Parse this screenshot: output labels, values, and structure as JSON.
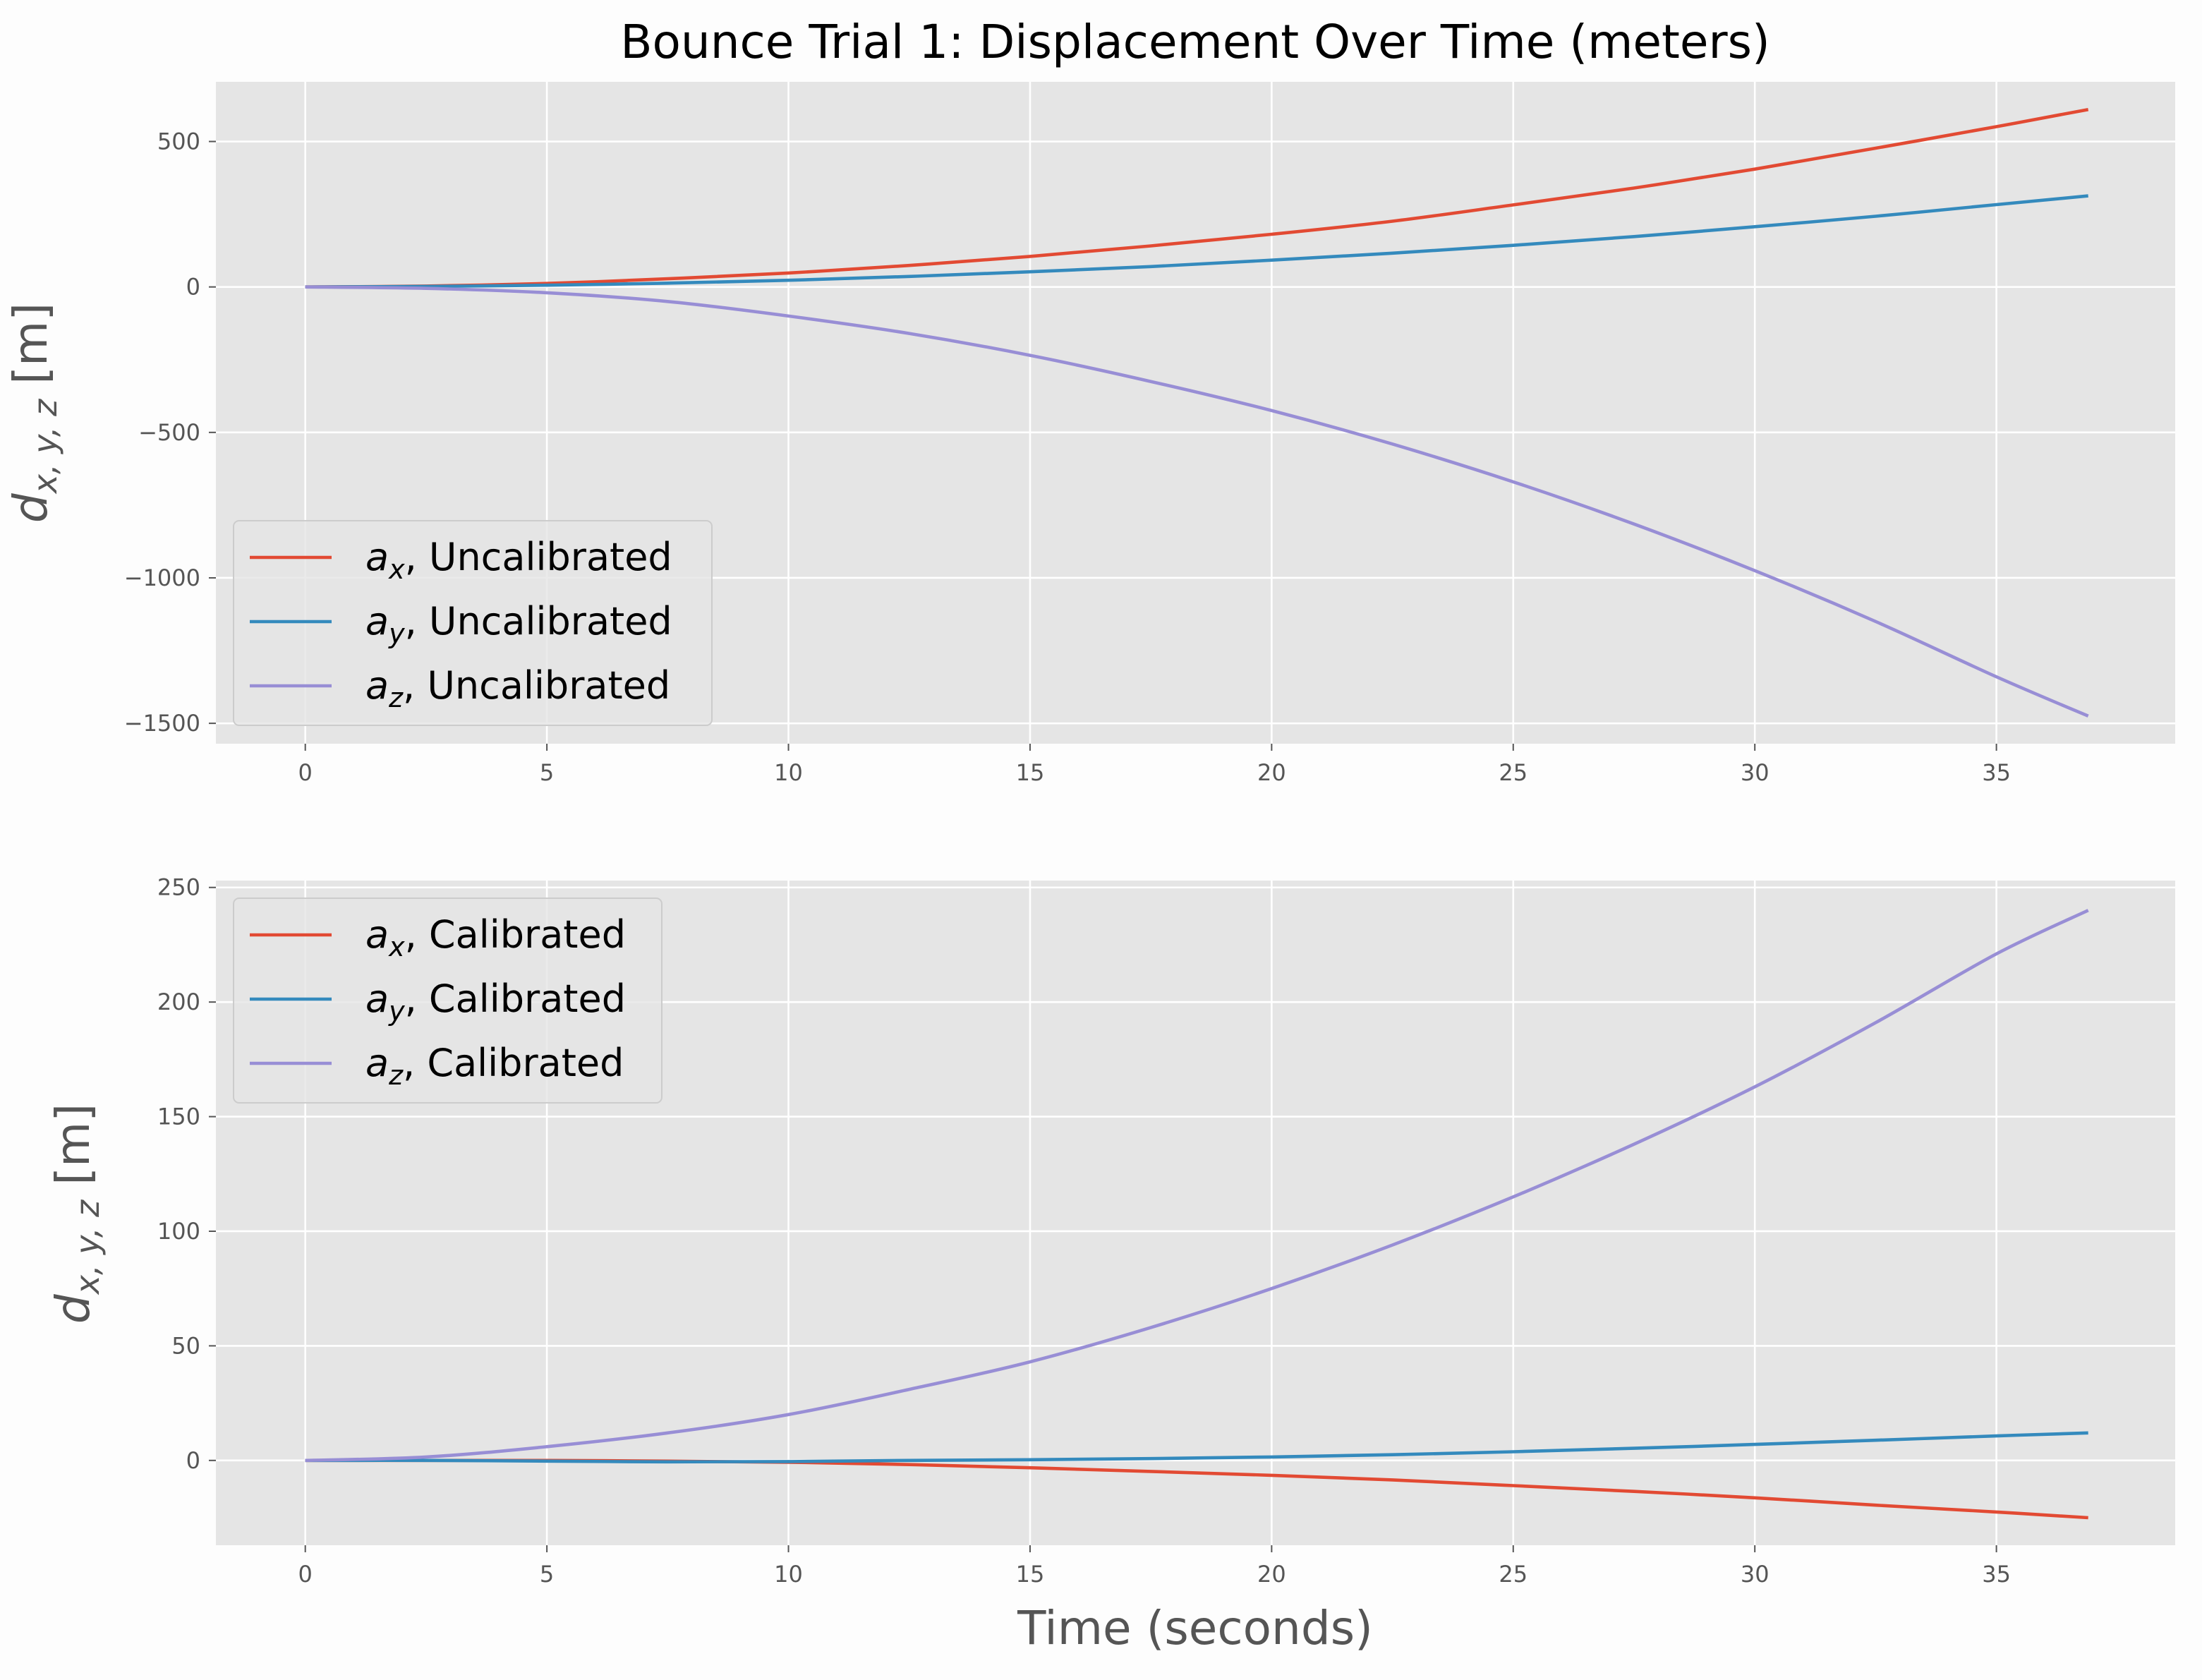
{
  "figure": {
    "title": "Bounce Trial 1: Displacement Over Time (meters)"
  },
  "colors": {
    "background": "#fdfdfd",
    "axes_face": "#e5e5e5",
    "grid": "#ffffff",
    "tick_text": "#555555",
    "series": [
      "#e24a33",
      "#348abd",
      "#988ed5"
    ]
  },
  "chart_data": [
    {
      "type": "line",
      "title": "",
      "xlabel": "",
      "ylabel": "d_{x,y,z} [m]",
      "ylabel_parts": {
        "base": "d",
        "sub": "x, y, z",
        "unit": "[m]"
      },
      "xlim": [
        -1.85,
        38.7
      ],
      "ylim": [
        -1570,
        705
      ],
      "xticks": [
        0,
        5,
        10,
        15,
        20,
        25,
        30,
        35
      ],
      "yticks": [
        500,
        0,
        -500,
        -1000,
        -1500
      ],
      "ytick_labels": [
        "500",
        "0",
        "−500",
        "−1000",
        "−1500"
      ],
      "grid": true,
      "legend_position": "lower-left",
      "x": [
        0,
        2.5,
        5,
        7.5,
        10,
        12.5,
        15,
        17.5,
        20,
        22.5,
        25,
        27.5,
        30,
        32.5,
        35,
        36.9
      ],
      "series": [
        {
          "name": "a_x, Uncalibrated",
          "legend": {
            "var": "a",
            "sub": "x",
            "rest": ", Uncalibrated"
          },
          "color": "#e24a33",
          "values": [
            0,
            3,
            12,
            28,
            48,
            74,
            105,
            141,
            181,
            226,
            282,
            340,
            405,
            477,
            551,
            610
          ]
        },
        {
          "name": "a_y, Uncalibrated",
          "legend": {
            "var": "a",
            "sub": "y",
            "rest": ", Uncalibrated"
          },
          "color": "#348abd",
          "values": [
            0,
            2,
            6,
            13,
            23,
            36,
            52,
            70,
            92,
            116,
            143,
            173,
            207,
            243,
            283,
            313
          ]
        },
        {
          "name": "a_z, Uncalibrated",
          "legend": {
            "var": "a",
            "sub": "z",
            "rest": ", Uncalibrated"
          },
          "color": "#988ed5",
          "values": [
            0,
            -5,
            -20,
            -50,
            -100,
            -160,
            -235,
            -325,
            -425,
            -540,
            -670,
            -815,
            -975,
            -1150,
            -1340,
            -1475
          ]
        }
      ]
    },
    {
      "type": "line",
      "title": "",
      "xlabel": "Time (seconds)",
      "ylabel": "d_{x,y,z} [m]",
      "ylabel_parts": {
        "base": "d",
        "sub": "x, y, z",
        "unit": "[m]"
      },
      "xlim": [
        -1.85,
        38.7
      ],
      "ylim": [
        -37,
        253
      ],
      "xticks": [
        0,
        5,
        10,
        15,
        20,
        25,
        30,
        35
      ],
      "yticks": [
        250,
        200,
        150,
        100,
        50,
        0
      ],
      "ytick_labels": [
        "250",
        "200",
        "150",
        "100",
        "50",
        "0"
      ],
      "grid": true,
      "legend_position": "upper-left",
      "x": [
        0,
        2.5,
        5,
        7.5,
        10,
        12.5,
        15,
        17.5,
        20,
        22.5,
        25,
        27.5,
        30,
        32.5,
        35,
        36.9
      ],
      "series": [
        {
          "name": "a_x, Calibrated",
          "legend": {
            "var": "a",
            "sub": "x",
            "rest": ", Calibrated"
          },
          "color": "#e24a33",
          "values": [
            0,
            0,
            0,
            -0.3,
            -0.8,
            -1.8,
            -3.2,
            -4.8,
            -6.5,
            -8.5,
            -11,
            -13.5,
            -16.3,
            -19.5,
            -22.5,
            -25
          ]
        },
        {
          "name": "a_y, Calibrated",
          "legend": {
            "var": "a",
            "sub": "y",
            "rest": ", Calibrated"
          },
          "color": "#348abd",
          "values": [
            0,
            0,
            -0.3,
            -0.6,
            -0.5,
            0,
            0.3,
            0.8,
            1.5,
            2.5,
            3.8,
            5.3,
            7,
            8.8,
            10.7,
            12
          ]
        },
        {
          "name": "a_z, Calibrated",
          "legend": {
            "var": "a",
            "sub": "z",
            "rest": ", Calibrated"
          },
          "color": "#988ed5",
          "values": [
            0,
            1.5,
            6,
            12,
            20,
            31,
            43,
            58,
            75,
            94,
            115,
            138,
            163,
            191,
            221,
            240
          ]
        }
      ]
    }
  ]
}
